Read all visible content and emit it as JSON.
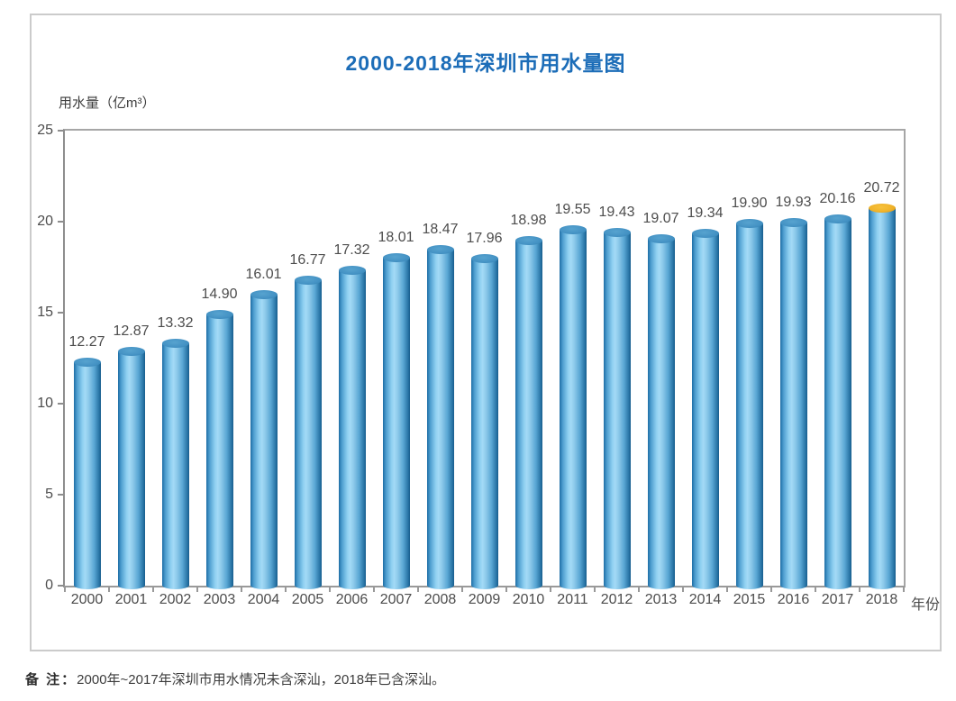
{
  "page": {
    "title": "2000-2018年深圳市用水量图",
    "note_label": "备 注：",
    "note_text": "2000年~2017年深圳市用水情况未含深汕，2018年已含深汕。"
  },
  "chart_data": {
    "type": "bar",
    "title": "2000-2018年深圳市用水量图",
    "ylabel": "用水量（亿m³）",
    "xlabel": "年份",
    "categories": [
      "2000",
      "2001",
      "2002",
      "2003",
      "2004",
      "2005",
      "2006",
      "2007",
      "2008",
      "2009",
      "2010",
      "2011",
      "2012",
      "2013",
      "2014",
      "2015",
      "2016",
      "2017",
      "2018"
    ],
    "values": [
      12.27,
      12.87,
      13.32,
      14.9,
      16.01,
      16.77,
      17.32,
      18.01,
      18.47,
      17.96,
      18.98,
      19.55,
      19.43,
      19.07,
      19.34,
      19.9,
      19.93,
      20.16,
      20.72
    ],
    "ylim": [
      0,
      25
    ],
    "yticks": [
      0,
      5,
      10,
      15,
      20,
      25
    ],
    "grid": false,
    "legend": null,
    "bar_style": "3d-cylinder",
    "highlight": {
      "category": "2018",
      "cap_color": "#f0b32a"
    }
  },
  "colors": {
    "title_blue": "#1c6db8",
    "bar_blue": "#5aa7d4",
    "bar_cap_blue": "#4492c4",
    "bar_cap_orange_2018": "#f0b32a",
    "axis_gray": "#999999",
    "label_gray": "#4c4c4c",
    "frame_border": "#cbcbcb"
  }
}
